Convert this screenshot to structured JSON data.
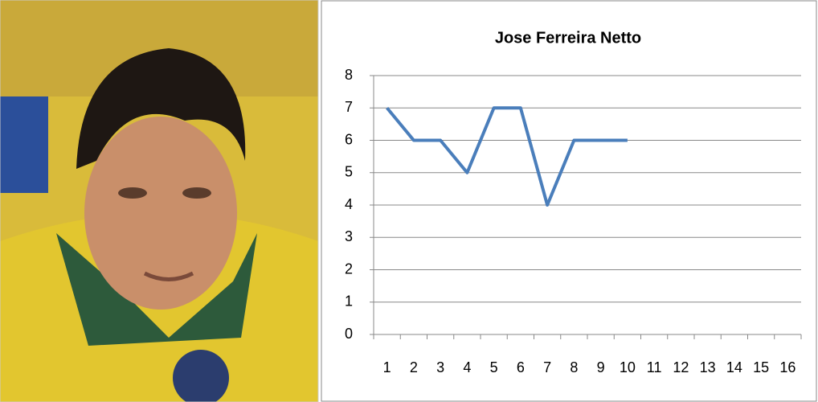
{
  "chart_data": {
    "type": "line",
    "title": "Jose Ferreira Netto",
    "categories": [
      1,
      2,
      3,
      4,
      5,
      6,
      7,
      8,
      9,
      10,
      11,
      12,
      13,
      14,
      15,
      16
    ],
    "series": [
      {
        "color": "#4a7ebb",
        "values": [
          7,
          6,
          6,
          5,
          7,
          7,
          4,
          6,
          6,
          6,
          null,
          null,
          null,
          null,
          null,
          null
        ]
      }
    ],
    "ylim": [
      0,
      8
    ],
    "yticks": [
      0,
      1,
      2,
      3,
      4,
      5,
      6,
      7,
      8
    ],
    "grid": true
  }
}
